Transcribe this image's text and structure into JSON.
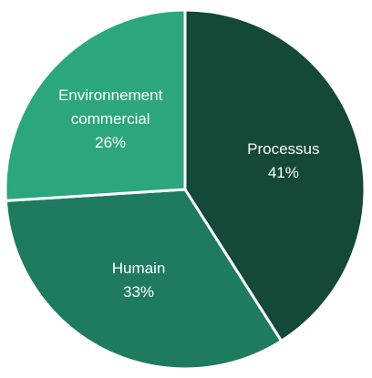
{
  "chart_data": {
    "type": "pie",
    "categories": [
      "Processus",
      "Humain",
      "Environnement commercial"
    ],
    "values": [
      41,
      33,
      26
    ],
    "value_labels": [
      "41%",
      "33%",
      "26%"
    ],
    "colors": [
      "#144838",
      "#1e7b5f",
      "#2ba67d"
    ]
  }
}
